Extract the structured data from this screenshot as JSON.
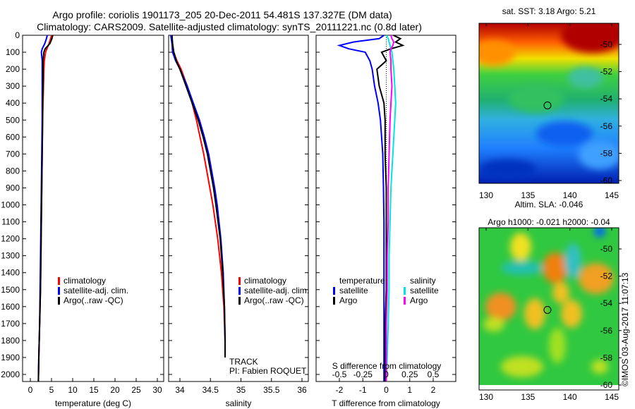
{
  "title_line1": "Argo profile: coriolis 1901173_205 20-Dec-2011 54.481S 137.327E (DM data)",
  "title_line2": "Climatology: CARS2009. Satellite-adjusted climatology: synTS_20111221.nc (0.8d later)",
  "colors": {
    "climatology": "#ff0000",
    "satellite": "#0000ff",
    "argo": "#000000",
    "sat_sal": "#00e5e5",
    "argo_sal": "#ff00ff"
  },
  "chart_data": [
    {
      "type": "line",
      "xlabel": "temperature (deg C)",
      "ylabel": "",
      "xlim": [
        -2,
        32
      ],
      "ylim": [
        2050,
        0
      ],
      "xticks": [
        0,
        5,
        10,
        15,
        20,
        25,
        30
      ],
      "yticks": [
        0,
        100,
        200,
        300,
        400,
        500,
        600,
        700,
        800,
        900,
        1000,
        1100,
        1200,
        1300,
        1400,
        1500,
        1600,
        1700,
        1800,
        1900,
        2000
      ],
      "legend": [
        "climatology",
        "satellite-adj. clim.",
        "Argo(..raw -QC)"
      ],
      "depth": [
        0,
        20,
        50,
        80,
        100,
        150,
        200,
        300,
        400,
        500,
        700,
        900,
        1100,
        1300,
        1500,
        1700,
        1900,
        2040
      ],
      "series": [
        {
          "name": "climatology",
          "color": "#ff0000",
          "values": [
            5.0,
            4.8,
            4.4,
            3.9,
            3.6,
            3.3,
            3.2,
            3.1,
            3.0,
            2.9,
            2.8,
            2.7,
            2.6,
            2.5,
            2.4,
            2.2,
            2.0,
            1.9
          ]
        },
        {
          "name": "satellite-adj. clim.",
          "color": "#0000ff",
          "values": [
            4.0,
            3.8,
            3.4,
            2.8,
            2.6,
            2.8,
            2.8,
            2.8,
            2.8,
            2.8,
            2.7,
            2.6,
            2.5,
            2.4,
            2.3,
            2.2,
            2.0,
            1.9
          ]
        },
        {
          "name": "Argo(..raw -QC)",
          "color": "#000000",
          "values": [
            5.3,
            5.1,
            4.6,
            3.5,
            3.2,
            3.0,
            3.0,
            3.0,
            2.9,
            2.9,
            2.8,
            2.7,
            2.6,
            2.5,
            2.4,
            2.2,
            2.0,
            1.9
          ]
        }
      ]
    },
    {
      "type": "line",
      "xlabel": "salinity",
      "xlim": [
        33.8,
        36.1
      ],
      "ylim": [
        2050,
        0
      ],
      "xticks": [
        34,
        34.5,
        35,
        35.5,
        36
      ],
      "xticklabels": [
        "34",
        "34.5",
        "35",
        "35.5",
        "36"
      ],
      "legend": [
        "climatology",
        "satellite-adj. clim.",
        "Argo(..raw -QC)"
      ],
      "annotations": [
        "TRACK",
        "PI: Fabien ROQUET"
      ],
      "depth": [
        0,
        50,
        100,
        150,
        200,
        300,
        400,
        500,
        600,
        700,
        800,
        900,
        1000,
        1200,
        1400,
        1600,
        1800,
        1900
      ],
      "series": [
        {
          "name": "climatology",
          "color": "#ff0000",
          "values": [
            33.86,
            33.88,
            33.9,
            33.95,
            34.02,
            34.12,
            34.2,
            34.27,
            34.33,
            34.39,
            34.44,
            34.49,
            34.54,
            34.62,
            34.68,
            34.72,
            34.74,
            34.74
          ]
        },
        {
          "name": "satellite-adj. clim.",
          "color": "#0000ff",
          "values": [
            33.85,
            33.87,
            33.88,
            33.93,
            34.0,
            34.12,
            34.22,
            34.32,
            34.4,
            34.47,
            34.52,
            34.57,
            34.61,
            34.67,
            34.71,
            34.73,
            34.74,
            34.74
          ]
        },
        {
          "name": "Argo(..raw -QC)",
          "color": "#000000",
          "values": [
            33.87,
            33.88,
            33.9,
            33.94,
            34.0,
            34.1,
            34.2,
            34.3,
            34.38,
            34.45,
            34.5,
            34.55,
            34.59,
            34.66,
            34.7,
            34.73,
            34.74,
            34.74
          ]
        }
      ]
    },
    {
      "type": "line",
      "xlabel": "T difference from climatology",
      "x2label": "S difference from climatology",
      "xlim": [
        -3,
        3
      ],
      "ylim": [
        2050,
        0
      ],
      "xticks": [
        -2,
        -1,
        0,
        1,
        2
      ],
      "x2ticks": [
        -0.5,
        -0.25,
        0,
        0.25,
        0.5
      ],
      "x2ticklabels": [
        "-0.5",
        "-0.25",
        "0",
        "0.25",
        "0.5"
      ],
      "legend_temperature": {
        "title": "temperature",
        "items": [
          "satellite",
          "Argo"
        ]
      },
      "legend_salinity": {
        "title": "salinity",
        "items": [
          "satellite",
          "Argo"
        ]
      },
      "depth": [
        0,
        20,
        40,
        60,
        80,
        100,
        150,
        200,
        300,
        400,
        500,
        700,
        900,
        1100,
        1300,
        1500,
        1700,
        1900,
        2040
      ],
      "series": [
        {
          "name": "T satellite",
          "color": "#0000ff",
          "values": [
            -0.1,
            -0.3,
            -1.4,
            -2.0,
            -1.6,
            -0.9,
            -0.7,
            -0.6,
            -0.5,
            -0.35,
            -0.25,
            -0.15,
            -0.12,
            -0.1,
            -0.1,
            -0.1,
            -0.1,
            -0.1,
            -0.1
          ]
        },
        {
          "name": "T Argo",
          "color": "#000000",
          "values": [
            0.3,
            0.6,
            0.4,
            0.7,
            0.2,
            -0.2,
            0.0,
            -0.4,
            -0.3,
            -0.1,
            -0.05,
            -0.05,
            0.0,
            0.0,
            0.0,
            0.0,
            -0.05,
            -0.05,
            -0.05
          ]
        },
        {
          "name": "S satellite",
          "color": "#00e5e5",
          "values": [
            0.0,
            0.02,
            0.03,
            0.04,
            0.05,
            0.06,
            0.07,
            0.08,
            0.09,
            0.1,
            0.09,
            0.07,
            0.05,
            0.04,
            0.03,
            0.03,
            0.02,
            0.01,
            0.0
          ]
        },
        {
          "name": "S Argo",
          "color": "#ff00ff",
          "values": [
            0.05,
            0.06,
            0.08,
            0.07,
            0.05,
            0.04,
            0.05,
            0.05,
            0.06,
            0.05,
            0.04,
            0.03,
            0.02,
            0.02,
            0.01,
            0.01,
            0.0,
            0.0,
            0.0
          ]
        }
      ]
    },
    {
      "type": "heatmap",
      "title": "sat. SST: 3.18 Argo: 5.21",
      "xlim": [
        128.5,
        146
      ],
      "ylim": [
        -60.5,
        -48.5
      ],
      "xticks": [
        130,
        135,
        140,
        145
      ],
      "yticks": [
        -50,
        -52,
        -54,
        -56,
        -58,
        -60
      ],
      "marker": {
        "lon": 137.327,
        "lat": -54.481
      }
    },
    {
      "type": "heatmap",
      "title": "Altim. SLA: -0.046",
      "subtitle": "Argo h1000: -0.021 h2000: -0.04",
      "xlim": [
        128.5,
        146
      ],
      "ylim": [
        -60.5,
        -48.5
      ],
      "xticks": [
        130,
        135,
        140,
        145
      ],
      "yticks": [
        -50,
        -52,
        -54,
        -56,
        -58,
        -60
      ],
      "marker": {
        "lon": 137.327,
        "lat": -54.481
      }
    }
  ],
  "footer": "©IMOS 03-Aug-2017 11:07:13"
}
